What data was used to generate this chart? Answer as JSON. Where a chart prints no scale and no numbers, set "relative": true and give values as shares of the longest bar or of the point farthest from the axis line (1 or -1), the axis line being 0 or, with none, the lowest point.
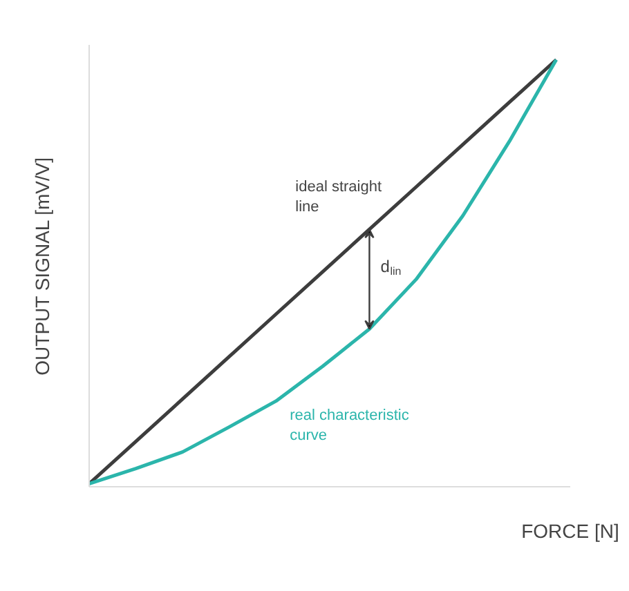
{
  "chart_data": {
    "type": "line",
    "relative": true,
    "xlabel": "FORCE [N]",
    "ylabel": "OUTPUT SIGNAL [mV/V]",
    "categories": [
      null,
      null,
      null,
      null,
      null,
      null,
      null,
      null,
      null,
      null,
      null
    ],
    "series": [
      {
        "name": "ideal straight line",
        "color": "#3d3d3d",
        "values": [
          0,
          0.1,
          0.2,
          0.3,
          0.4,
          0.5,
          0.6,
          0.7,
          0.8,
          0.9,
          1.0
        ]
      },
      {
        "name": "real characteristic curve",
        "color": "#2bb5ab",
        "values": [
          0,
          0.036,
          0.075,
          0.134,
          0.195,
          0.277,
          0.365,
          0.482,
          0.632,
          0.808,
          1.0
        ]
      }
    ],
    "annotations": [
      "d$_{lin}$"
    ],
    "grid": false,
    "legend": false,
    "marker": "none",
    "line_style": "solid"
  }
}
